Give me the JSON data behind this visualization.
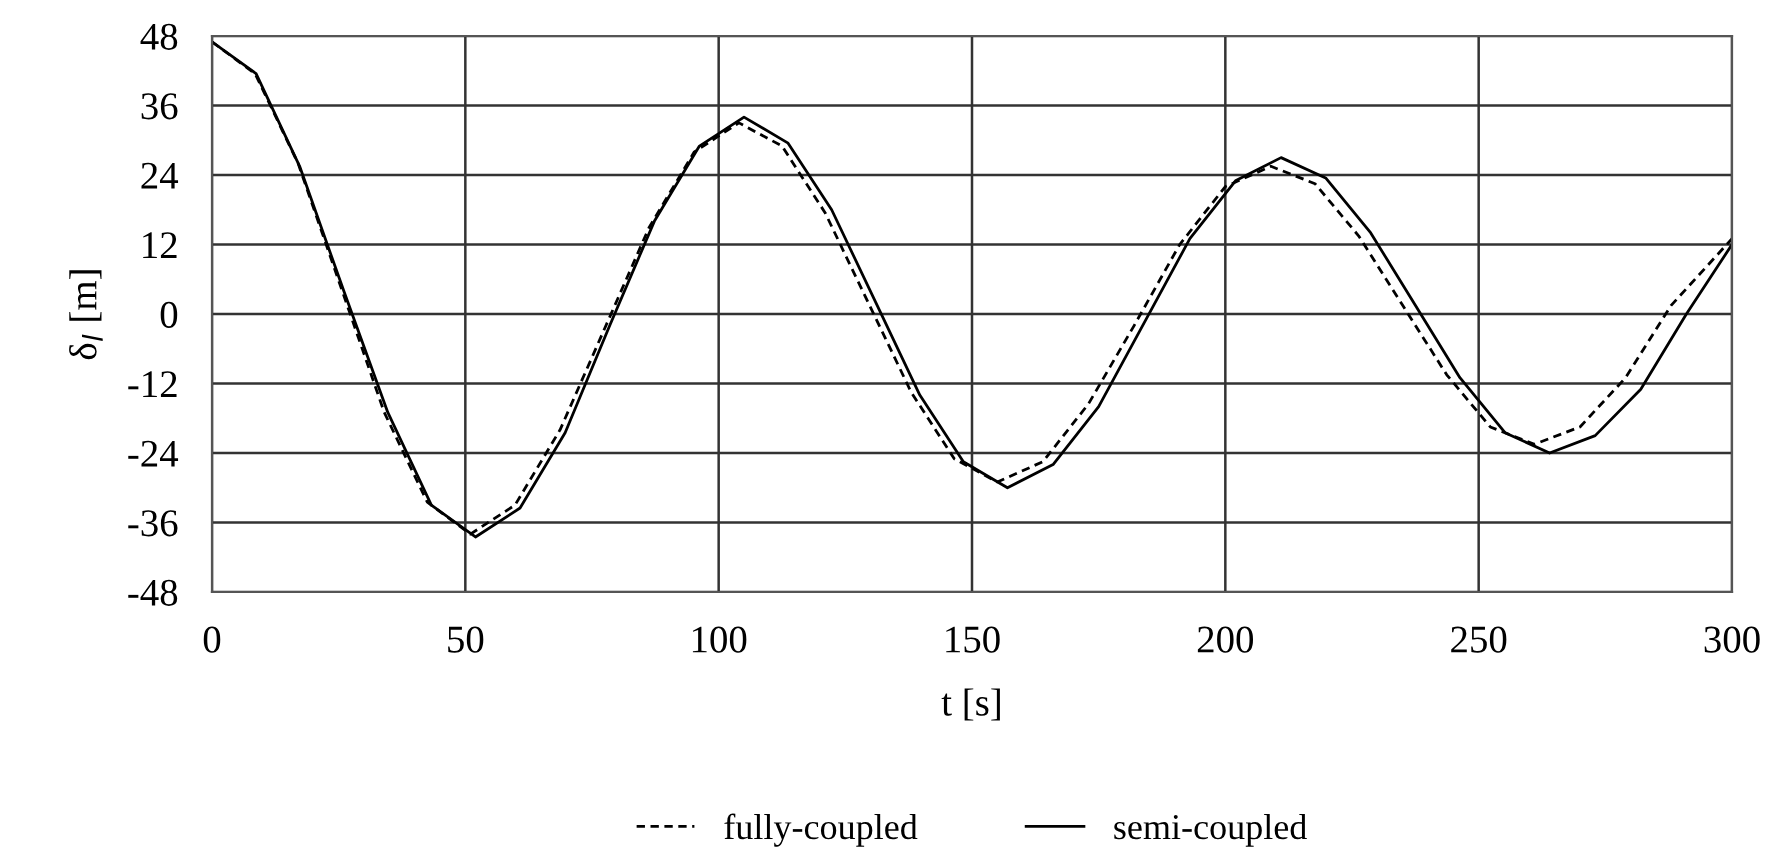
{
  "chart_data": {
    "type": "line",
    "xlabel": "t [s]",
    "ylabel": "δ$_{l}$ [m]",
    "xlim": [
      0,
      300
    ],
    "xticks": [
      0,
      50,
      100,
      150,
      200,
      250,
      300
    ],
    "ylim": [
      -48,
      48
    ],
    "yticks": [
      -48,
      -36,
      -24,
      -12,
      0,
      12,
      24,
      36,
      48
    ],
    "grid": true,
    "legend": "bottom",
    "series": [
      {
        "name": "fully-coupled",
        "color": "#000000",
        "line_style": "dashed",
        "x": [
          0,
          8.5,
          17,
          25.5,
          34,
          42.5,
          51,
          59.8,
          68.7,
          77.5,
          86.3,
          95.2,
          104,
          112.5,
          121,
          129.5,
          138,
          146.5,
          155,
          164,
          173,
          182,
          191,
          200,
          209,
          217.7,
          226.3,
          235,
          243.7,
          252.3,
          261,
          270,
          279,
          288,
          300
        ],
        "values": [
          47,
          41.5,
          26,
          4.5,
          -17,
          -32.5,
          -38,
          -33,
          -20,
          -2.5,
          15,
          28,
          33,
          29,
          17.5,
          2,
          -13.5,
          -25,
          -29,
          -25.5,
          -15.5,
          -2,
          12,
          22,
          25.5,
          22.5,
          13.5,
          1.5,
          -10.5,
          -19.5,
          -22.5,
          -19.5,
          -11,
          1.5,
          13
        ]
      },
      {
        "name": "semi-coupled",
        "color": "#000000",
        "line_style": "solid",
        "x": [
          0,
          8.7,
          17.3,
          26,
          34.7,
          43.3,
          52,
          60.8,
          69.7,
          78.5,
          87.3,
          96.2,
          105,
          113.7,
          122.3,
          131,
          139.7,
          148.3,
          157,
          166,
          175,
          184,
          193,
          202,
          211,
          219.8,
          228.7,
          237.5,
          246.3,
          255.2,
          264,
          273,
          282,
          291,
          300
        ],
        "values": [
          47,
          41.5,
          25.5,
          4,
          -17,
          -33,
          -38.5,
          -33.5,
          -20.5,
          -2,
          16,
          29,
          34,
          29.5,
          18,
          2,
          -14,
          -25.5,
          -30,
          -26,
          -16,
          -1.5,
          13,
          23,
          27,
          23.5,
          14,
          1.5,
          -11,
          -20.5,
          -24,
          -21,
          -13,
          0,
          12
        ]
      }
    ]
  }
}
